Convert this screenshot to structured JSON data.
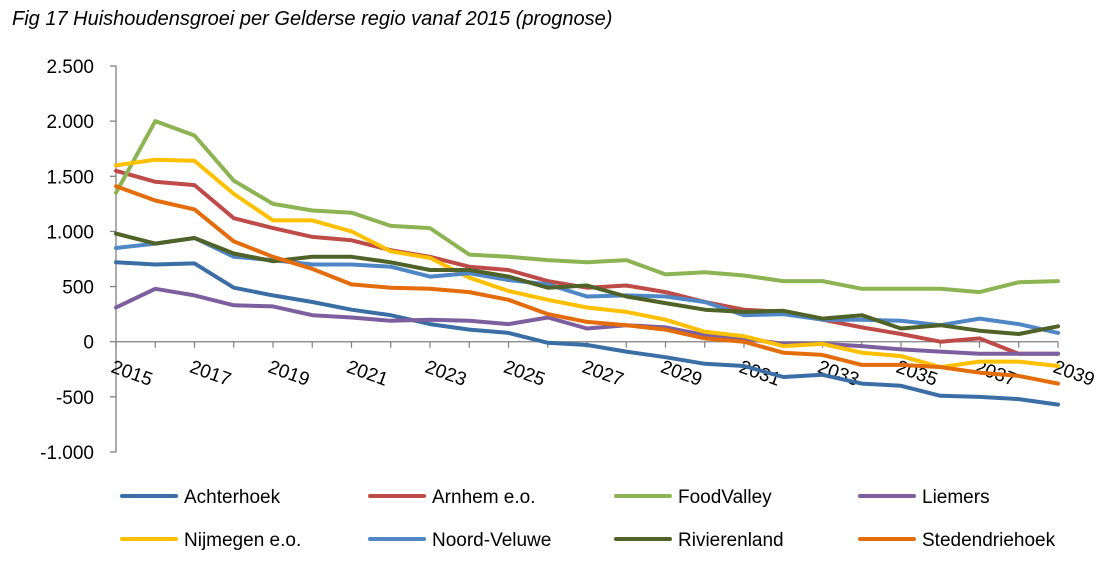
{
  "title": "Fig 17 Huishoudensgroei per Gelderse regio vanaf 2015 (prognose)",
  "chart_data": {
    "type": "line",
    "title": "Fig 17 Huishoudensgroei per Gelderse regio vanaf 2015 (prognose)",
    "xlabel": "",
    "ylabel": "",
    "ylim": [
      -1000,
      2500
    ],
    "yticks": [
      2500,
      2000,
      1500,
      1000,
      500,
      0,
      -500,
      -1000
    ],
    "ytick_labels": [
      "2.500",
      "2.000",
      "1.500",
      "1.000",
      "500",
      "0",
      "-500",
      "-1.000"
    ],
    "x": [
      2015,
      2016,
      2017,
      2018,
      2019,
      2020,
      2021,
      2022,
      2023,
      2024,
      2025,
      2026,
      2027,
      2028,
      2029,
      2030,
      2031,
      2032,
      2033,
      2034,
      2035,
      2036,
      2037,
      2038,
      2039
    ],
    "xtick_labels": [
      "2015",
      "2017",
      "2019",
      "2021",
      "2023",
      "2025",
      "2027",
      "2029",
      "2031",
      "2033",
      "2035",
      "2037",
      "2039"
    ],
    "grid": false,
    "legend_position": "bottom",
    "series": [
      {
        "name": "Achterhoek",
        "color": "#3A6EA5",
        "values": [
          720,
          700,
          710,
          490,
          420,
          360,
          290,
          240,
          160,
          110,
          80,
          -10,
          -30,
          -90,
          -140,
          -200,
          -220,
          -320,
          -300,
          -380,
          -400,
          -490,
          -500,
          -520,
          -570
        ]
      },
      {
        "name": "Arnhem e.o.",
        "color": "#BE4B48",
        "values": [
          1550,
          1450,
          1420,
          1120,
          1030,
          950,
          920,
          830,
          770,
          680,
          650,
          550,
          490,
          510,
          450,
          360,
          290,
          270,
          200,
          130,
          70,
          0,
          30,
          -110,
          -110
        ]
      },
      {
        "name": "FoodValley",
        "color": "#8CB453",
        "values": [
          1350,
          2000,
          1870,
          1460,
          1250,
          1190,
          1170,
          1050,
          1030,
          790,
          770,
          740,
          720,
          740,
          610,
          630,
          600,
          550,
          550,
          480,
          480,
          480,
          450,
          540,
          550
        ]
      },
      {
        "name": "Liemers",
        "color": "#7D5FA0",
        "values": [
          310,
          480,
          420,
          330,
          320,
          240,
          220,
          190,
          200,
          190,
          160,
          220,
          120,
          150,
          130,
          60,
          30,
          -20,
          -20,
          -40,
          -70,
          -90,
          -110,
          -110,
          -110
        ]
      },
      {
        "name": "Nijmegen e.o.",
        "color": "#FFC000",
        "values": [
          1600,
          1650,
          1640,
          1340,
          1100,
          1100,
          1000,
          820,
          760,
          580,
          460,
          380,
          310,
          270,
          200,
          90,
          50,
          -40,
          -20,
          -100,
          -130,
          -230,
          -180,
          -180,
          -220
        ]
      },
      {
        "name": "Noord-Veluwe",
        "color": "#4F86C6",
        "values": [
          850,
          890,
          940,
          770,
          740,
          700,
          700,
          680,
          590,
          620,
          560,
          520,
          410,
          420,
          410,
          360,
          240,
          250,
          200,
          200,
          190,
          150,
          210,
          160,
          80
        ]
      },
      {
        "name": "Rivierenland",
        "color": "#4F6228",
        "values": [
          980,
          890,
          940,
          800,
          730,
          770,
          770,
          720,
          650,
          650,
          590,
          490,
          510,
          410,
          350,
          290,
          270,
          280,
          210,
          240,
          120,
          150,
          100,
          70,
          140
        ]
      },
      {
        "name": "Stedendriehoek",
        "color": "#E46C0A",
        "values": [
          1410,
          1280,
          1200,
          910,
          770,
          660,
          520,
          490,
          480,
          450,
          380,
          250,
          180,
          150,
          110,
          30,
          0,
          -100,
          -120,
          -210,
          -210,
          -230,
          -280,
          -310,
          -380
        ]
      }
    ]
  }
}
